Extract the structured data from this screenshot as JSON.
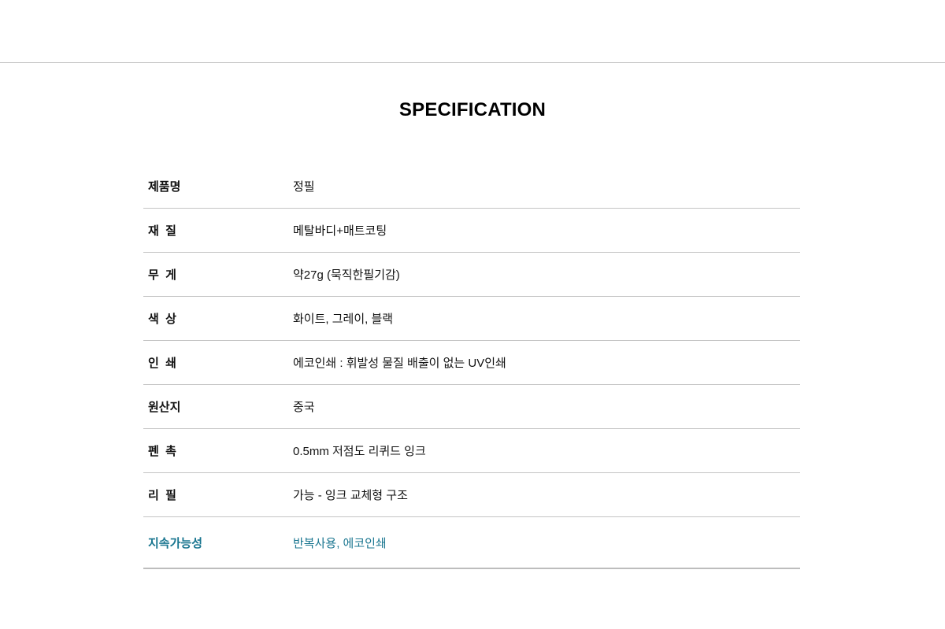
{
  "title": "SPECIFICATION",
  "accent_color": "#1a7690",
  "specs": [
    {
      "label": "제품명",
      "value": "정필"
    },
    {
      "label": "재  질",
      "value": "메탈바디+매트코팅"
    },
    {
      "label": "무  게",
      "value": "약27g (묵직한필기감)"
    },
    {
      "label": "색  상",
      "value": "화이트, 그레이, 블랙"
    },
    {
      "label": "인  쇄",
      "value": "에코인쇄 : 휘발성 물질 배출이 없는 UV인쇄"
    },
    {
      "label": "원산지",
      "value": "중국"
    },
    {
      "label": "펜  촉",
      "value": "0.5mm 저점도 리퀴드 잉크"
    },
    {
      "label": "리  필",
      "value": "가능 - 잉크 교체형 구조"
    },
    {
      "label": "지속가능성",
      "value": "반복사용, 에코인쇄"
    }
  ]
}
